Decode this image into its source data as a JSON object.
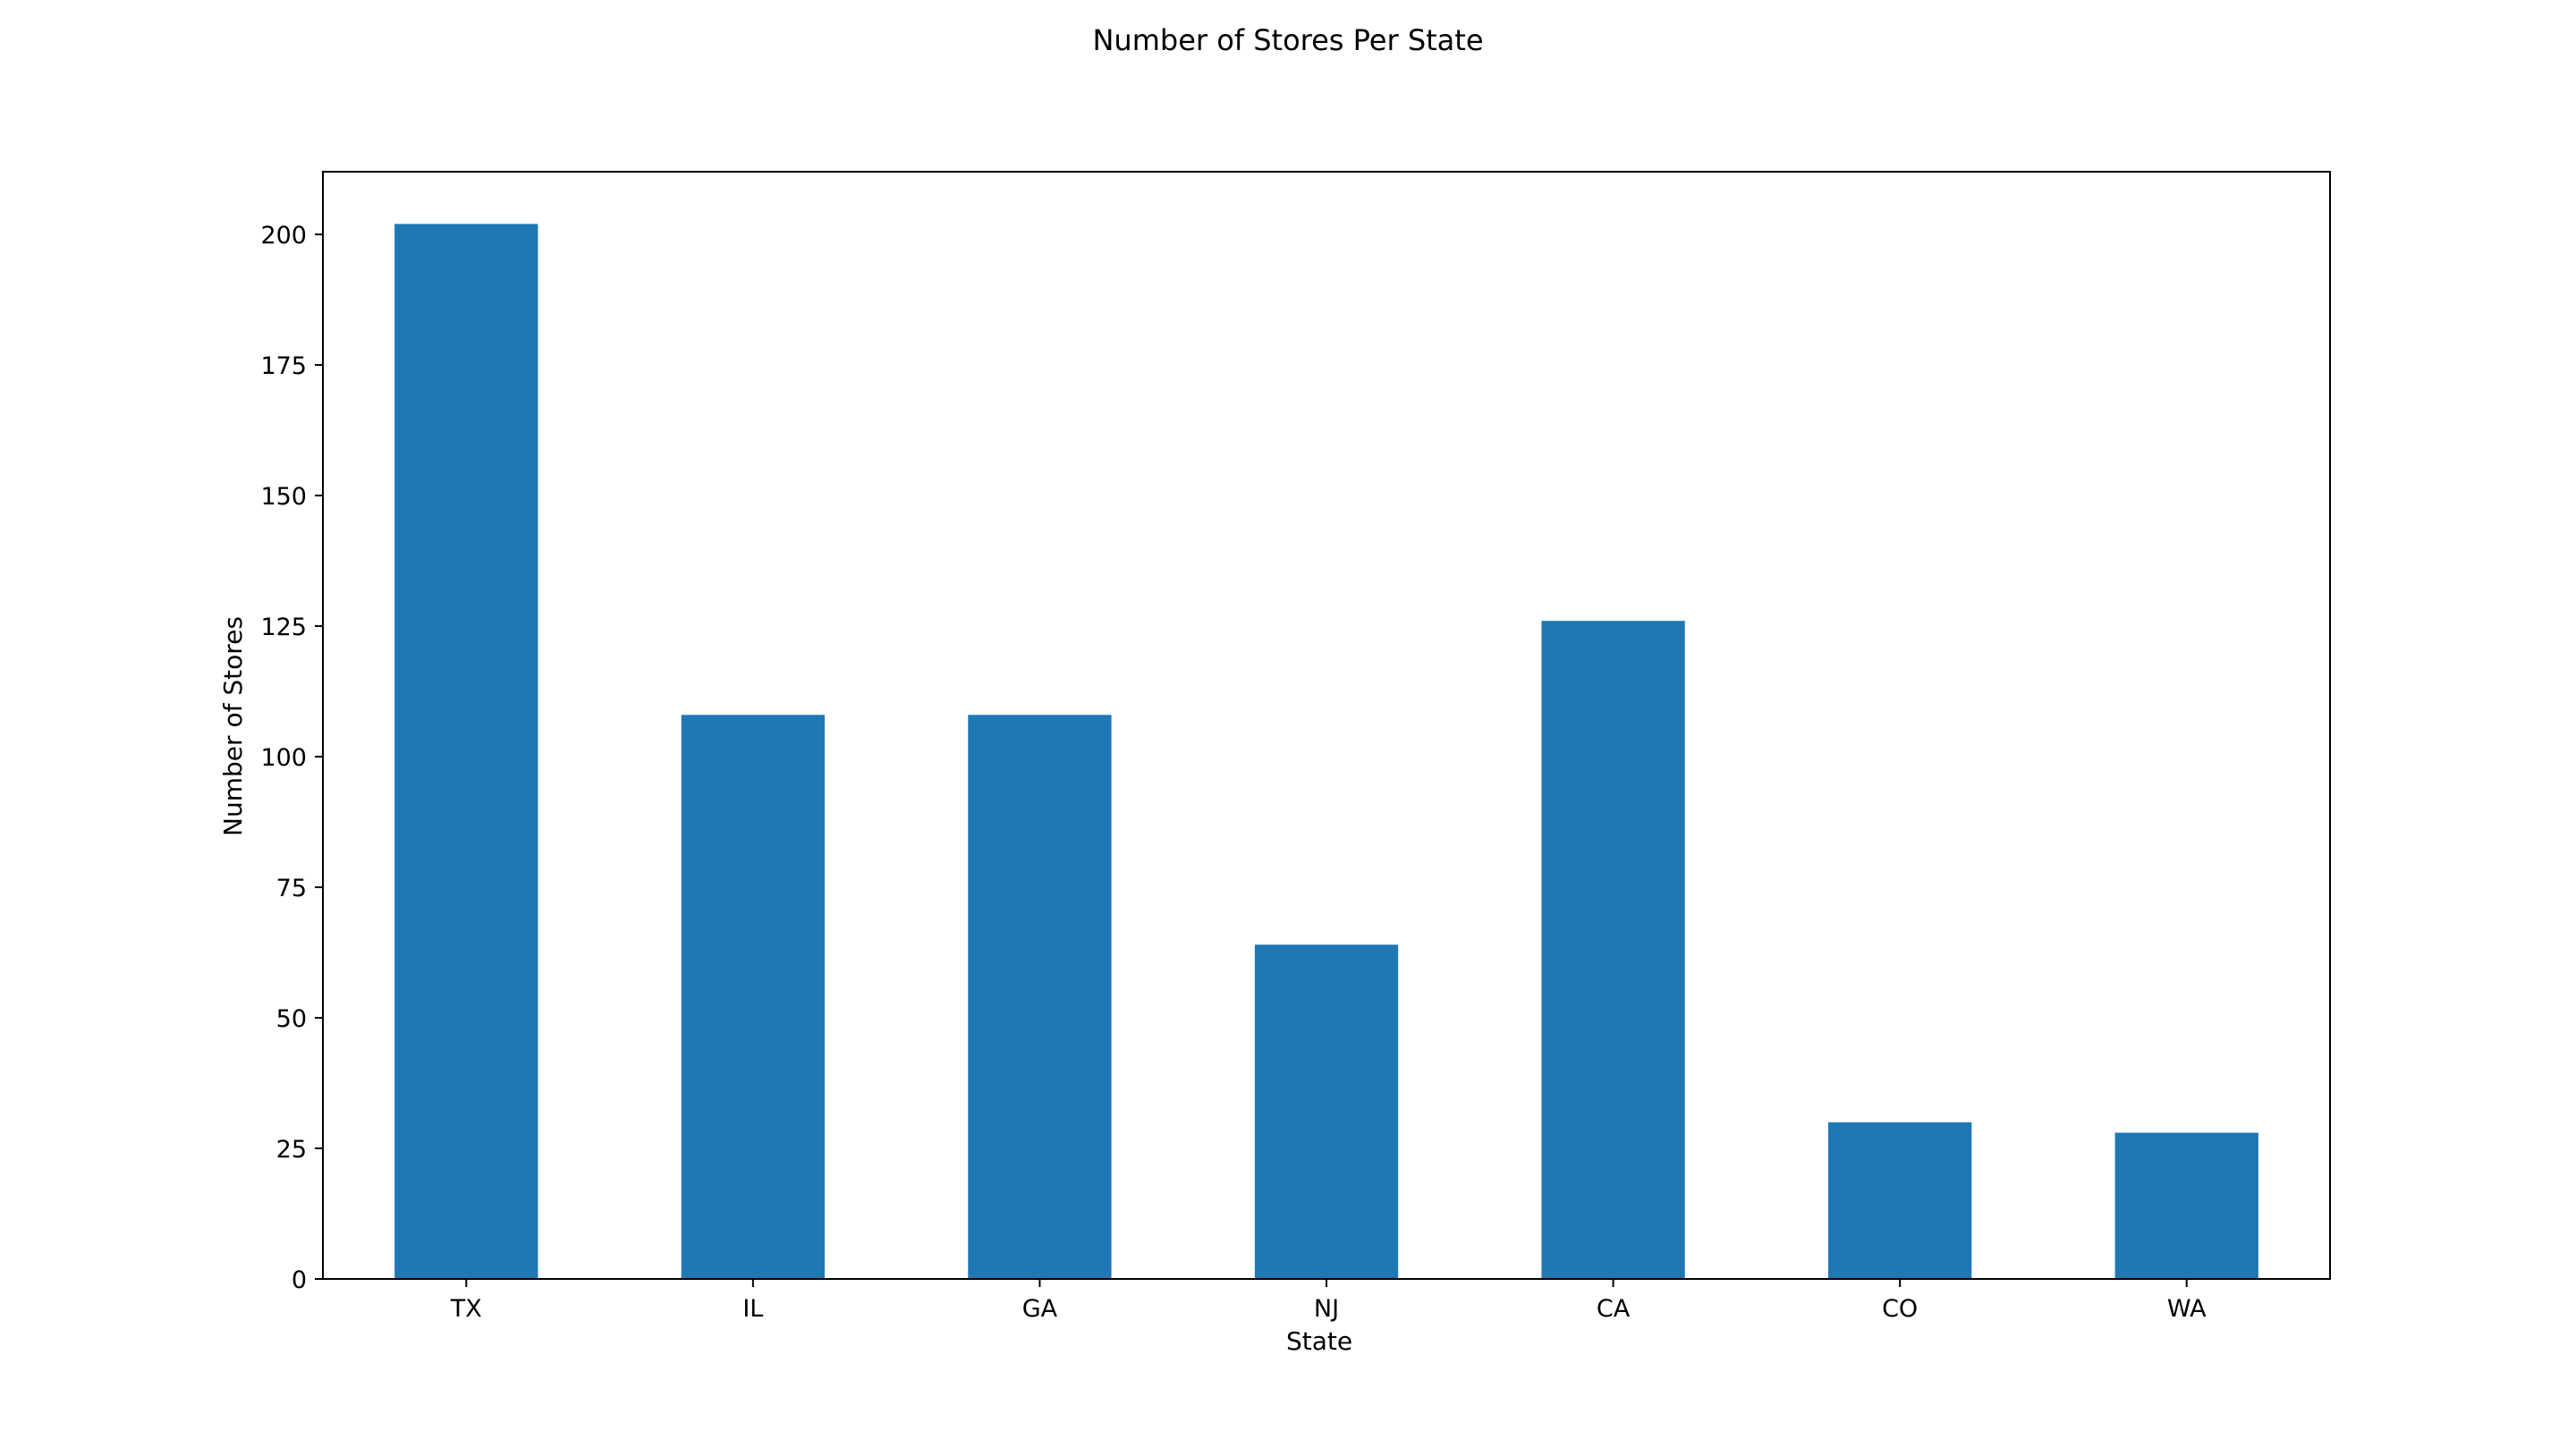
{
  "chart_data": {
    "type": "bar",
    "title": "Number of Stores Per State",
    "xlabel": "State",
    "ylabel": "Number of Stores",
    "categories": [
      "TX",
      "IL",
      "GA",
      "NJ",
      "CA",
      "CO",
      "WA"
    ],
    "values": [
      202,
      108,
      108,
      64,
      126,
      30,
      28
    ],
    "ylim": [
      0,
      212
    ],
    "yticks": [
      0,
      25,
      50,
      75,
      100,
      125,
      150,
      175,
      200
    ],
    "grid": false,
    "legend": "none",
    "bar_color": "#1f77b4"
  }
}
